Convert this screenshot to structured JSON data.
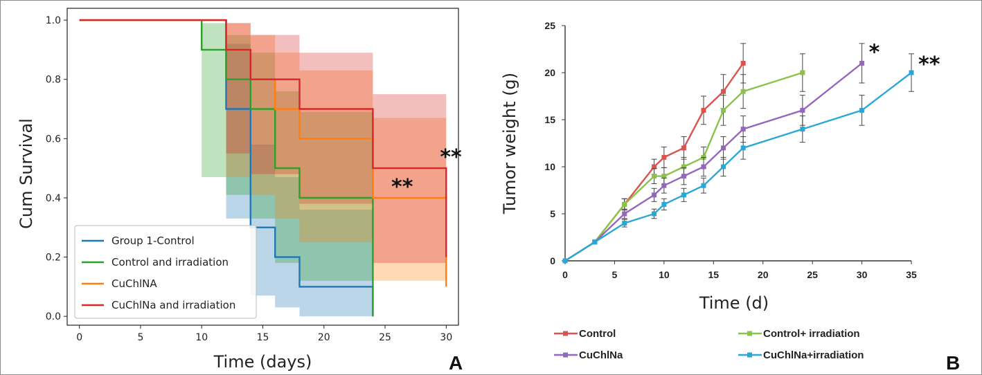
{
  "chart_data": [
    {
      "type": "line",
      "panel_label": "A",
      "xlabel": "Time (days)",
      "ylabel": "Cum Survival",
      "xlim": [
        -1,
        31
      ],
      "ylim": [
        -0.03,
        1.04
      ],
      "xticks": [
        "0",
        "5",
        "10",
        "15",
        "20",
        "25",
        "30"
      ],
      "yticks": [
        "0.0",
        "0.2",
        "0.4",
        "0.6",
        "0.8",
        "1.0"
      ],
      "legend_position": "lower-left",
      "annotations": [
        {
          "text": "**",
          "x": 30,
          "y": 0.5
        },
        {
          "text": "**",
          "x": 28,
          "y": 0.4
        }
      ],
      "series": [
        {
          "name": "Group 1-Control",
          "color": "#1f77b4",
          "step_points": [
            [
              0,
              1.0
            ],
            [
              12,
              1.0
            ],
            [
              12,
              0.7
            ],
            [
              14,
              0.7
            ],
            [
              14,
              0.3
            ],
            [
              16,
              0.3
            ],
            [
              16,
              0.2
            ],
            [
              18,
              0.2
            ],
            [
              18,
              0.1
            ],
            [
              24,
              0.1
            ],
            [
              24,
              0.0
            ]
          ],
          "ci_steps": [
            {
              "x0": 0,
              "x1": 12,
              "lo": 1.0,
              "hi": 1.0
            },
            {
              "x0": 12,
              "x1": 14,
              "lo": 0.33,
              "hi": 0.92
            },
            {
              "x0": 14,
              "x1": 16,
              "lo": 0.07,
              "hi": 0.58
            },
            {
              "x0": 16,
              "x1": 18,
              "lo": 0.03,
              "hi": 0.47
            },
            {
              "x0": 18,
              "x1": 24,
              "lo": 0.0,
              "hi": 0.36
            }
          ]
        },
        {
          "name": "Control and irradiation",
          "color": "#2ca02c",
          "step_points": [
            [
              0,
              1.0
            ],
            [
              10,
              1.0
            ],
            [
              10,
              0.9
            ],
            [
              12,
              0.9
            ],
            [
              12,
              0.8
            ],
            [
              14,
              0.8
            ],
            [
              14,
              0.7
            ],
            [
              16,
              0.7
            ],
            [
              16,
              0.5
            ],
            [
              18,
              0.5
            ],
            [
              18,
              0.4
            ],
            [
              24,
              0.4
            ],
            [
              24,
              0.0
            ]
          ],
          "ci_steps": [
            {
              "x0": 0,
              "x1": 10,
              "lo": 1.0,
              "hi": 1.0
            },
            {
              "x0": 10,
              "x1": 12,
              "lo": 0.47,
              "hi": 0.99
            },
            {
              "x0": 12,
              "x1": 14,
              "lo": 0.41,
              "hi": 0.95
            },
            {
              "x0": 14,
              "x1": 16,
              "lo": 0.33,
              "hi": 0.89
            },
            {
              "x0": 16,
              "x1": 18,
              "lo": 0.18,
              "hi": 0.76
            },
            {
              "x0": 18,
              "x1": 24,
              "lo": 0.12,
              "hi": 0.69
            }
          ]
        },
        {
          "name": "CuChlNA",
          "color": "#ff7f0e",
          "step_points": [
            [
              0,
              1.0
            ],
            [
              12,
              1.0
            ],
            [
              12,
              0.9
            ],
            [
              14,
              0.9
            ],
            [
              14,
              0.8
            ],
            [
              16,
              0.8
            ],
            [
              16,
              0.7
            ],
            [
              18,
              0.7
            ],
            [
              18,
              0.6
            ],
            [
              24,
              0.6
            ],
            [
              24,
              0.4
            ],
            [
              30,
              0.4
            ],
            [
              30,
              0.1
            ]
          ],
          "ci_steps": [
            {
              "x0": 0,
              "x1": 12,
              "lo": 1.0,
              "hi": 1.0
            },
            {
              "x0": 12,
              "x1": 14,
              "lo": 0.47,
              "hi": 0.99
            },
            {
              "x0": 14,
              "x1": 16,
              "lo": 0.41,
              "hi": 0.95
            },
            {
              "x0": 16,
              "x1": 18,
              "lo": 0.33,
              "hi": 0.89
            },
            {
              "x0": 18,
              "x1": 24,
              "lo": 0.25,
              "hi": 0.83
            },
            {
              "x0": 24,
              "x1": 30,
              "lo": 0.12,
              "hi": 0.67
            }
          ]
        },
        {
          "name": "CuChlNa and irradiation",
          "color": "#d62728",
          "step_points": [
            [
              0,
              1.0
            ],
            [
              12,
              1.0
            ],
            [
              12,
              0.9
            ],
            [
              14,
              0.9
            ],
            [
              14,
              0.8
            ],
            [
              18,
              0.8
            ],
            [
              18,
              0.7
            ],
            [
              24,
              0.7
            ],
            [
              24,
              0.5
            ],
            [
              30,
              0.5
            ],
            [
              30,
              0.2
            ]
          ],
          "ci_steps": [
            {
              "x0": 0,
              "x1": 12,
              "lo": 1.0,
              "hi": 1.0
            },
            {
              "x0": 12,
              "x1": 14,
              "lo": 0.55,
              "hi": 0.99
            },
            {
              "x0": 14,
              "x1": 18,
              "lo": 0.48,
              "hi": 0.95
            },
            {
              "x0": 18,
              "x1": 24,
              "lo": 0.38,
              "hi": 0.89
            },
            {
              "x0": 24,
              "x1": 30,
              "lo": 0.18,
              "hi": 0.75
            }
          ]
        }
      ]
    },
    {
      "type": "line",
      "panel_label": "B",
      "xlabel": "Time (d)",
      "ylabel": "Tumor weight (g)",
      "xlim": [
        0,
        35
      ],
      "ylim": [
        0,
        25
      ],
      "xticks": [
        "0",
        "5",
        "10",
        "15",
        "20",
        "25",
        "30",
        "35"
      ],
      "yticks": [
        "0",
        "5",
        "10",
        "15",
        "20",
        "25"
      ],
      "legend_position": "bottom",
      "annotations": [
        {
          "text": "*",
          "x": 30,
          "y": 21
        },
        {
          "text": "**",
          "x": 35,
          "y": 20
        }
      ],
      "series": [
        {
          "name": "Control",
          "color": "#d9534f",
          "x": [
            0,
            3,
            6,
            9,
            10,
            12,
            14,
            16,
            18
          ],
          "y": [
            0,
            2,
            6,
            10,
            11,
            12,
            16,
            18,
            21
          ],
          "err": [
            0,
            0,
            0.6,
            0.8,
            1.1,
            1.2,
            1.5,
            1.8,
            2.1
          ]
        },
        {
          "name": "Control+ irradiation",
          "color": "#8bc34a",
          "x": [
            0,
            3,
            6,
            9,
            10,
            12,
            14,
            16,
            18,
            24
          ],
          "y": [
            0,
            2,
            6,
            9,
            9,
            10,
            11,
            16,
            18,
            20
          ],
          "err": [
            0,
            0,
            0.6,
            0.8,
            0.9,
            1.0,
            1.1,
            1.6,
            1.8,
            2.0
          ]
        },
        {
          "name": "CuChlNa",
          "color": "#9467bd",
          "x": [
            0,
            3,
            6,
            9,
            10,
            12,
            14,
            16,
            18,
            24,
            30
          ],
          "y": [
            0,
            2,
            5,
            7,
            8,
            9,
            10,
            12,
            14,
            16,
            21
          ],
          "err": [
            0,
            0,
            0.5,
            0.7,
            0.8,
            0.9,
            1.0,
            1.2,
            1.4,
            1.6,
            2.1
          ]
        },
        {
          "name": "CuChlNa+irradiation",
          "color": "#29a8d6",
          "x": [
            0,
            3,
            6,
            9,
            10,
            12,
            14,
            16,
            18,
            24,
            30,
            35
          ],
          "y": [
            0,
            2,
            4,
            5,
            6,
            7,
            8,
            10,
            12,
            14,
            16,
            20
          ],
          "err": [
            0,
            0,
            0.4,
            0.5,
            0.6,
            0.7,
            0.8,
            1.0,
            1.2,
            1.4,
            1.6,
            2.0
          ]
        }
      ]
    }
  ]
}
